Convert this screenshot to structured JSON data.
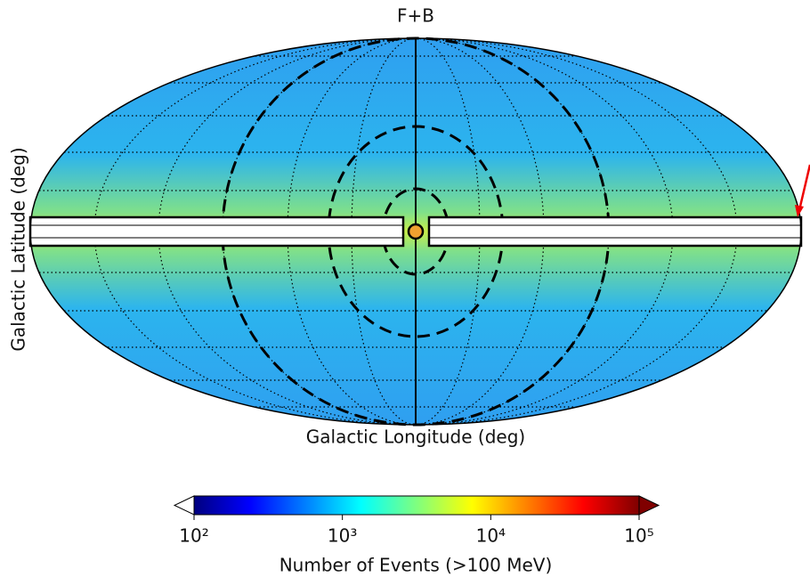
{
  "chart_data": {
    "type": "skymap",
    "title": "F+B",
    "xlabel": "Galactic Longitude (deg)",
    "ylabel": "Galactic Latitude (deg)",
    "colorbar": {
      "label": "Number of Events (>100 MeV)",
      "colormap": "jet",
      "log": true,
      "lim": [
        100,
        100000
      ],
      "ticks": [
        {
          "value": 100,
          "label": "10²"
        },
        {
          "value": 1000,
          "label": "10³"
        },
        {
          "value": 10000,
          "label": "10⁴"
        },
        {
          "value": 100000,
          "label": "10⁵"
        }
      ]
    }
  }
}
